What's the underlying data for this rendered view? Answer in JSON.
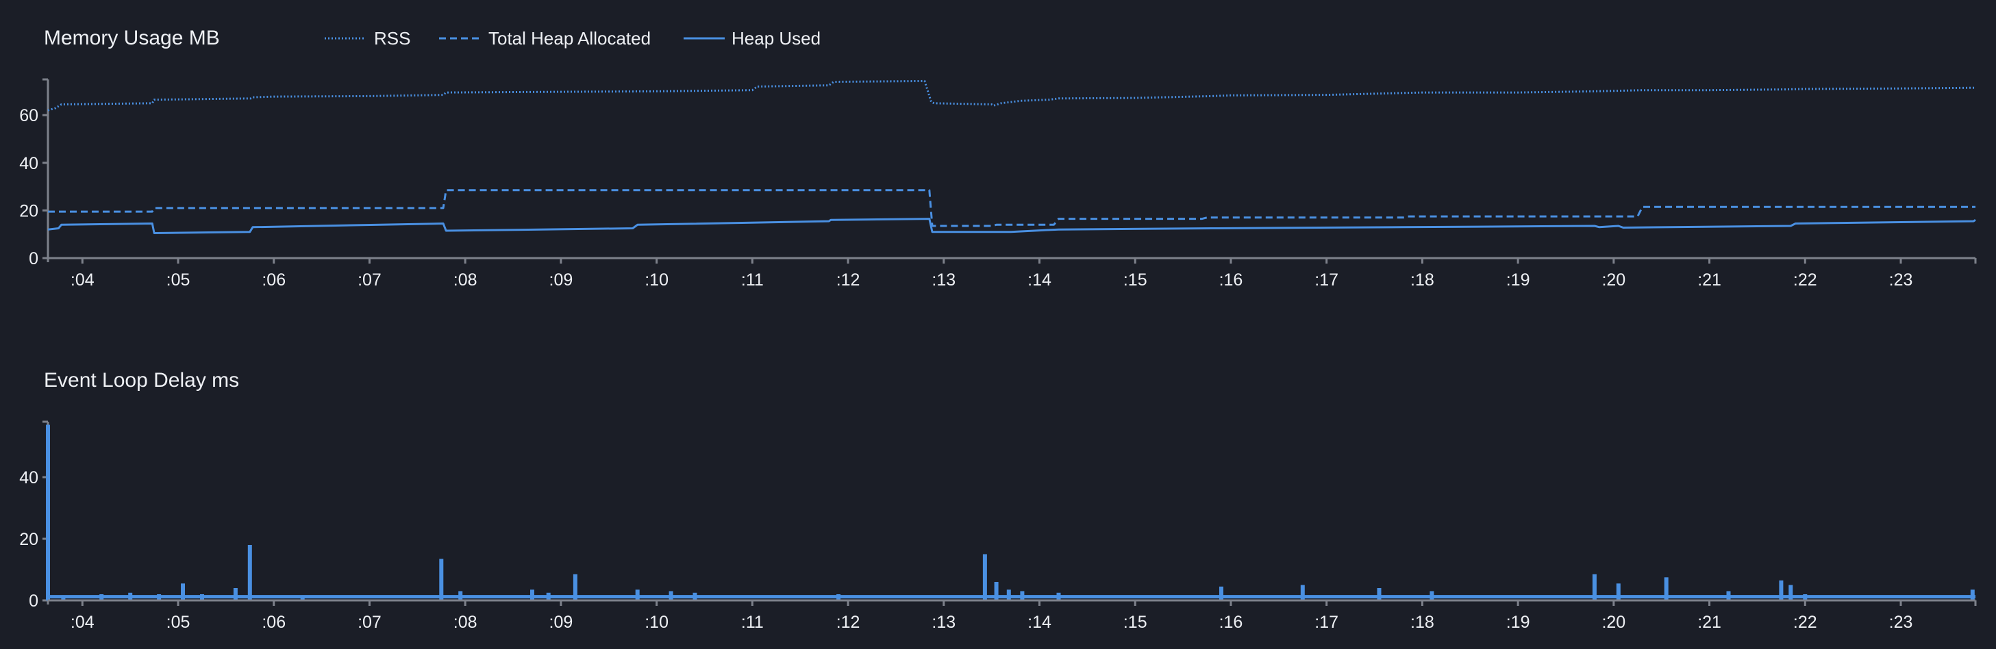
{
  "colors": {
    "background": "#1b1e27",
    "series": "#4a90e2",
    "axis": "#7d818b",
    "text": "#eef0f4"
  },
  "chart_data": [
    {
      "type": "line",
      "title": "Memory Usage MB",
      "legend_position": "top",
      "xlabel": "",
      "ylabel": "",
      "x_ticks": [
        ":04",
        ":05",
        ":06",
        ":07",
        ":08",
        ":09",
        ":10",
        ":11",
        ":12",
        ":13",
        ":14",
        ":15",
        ":16",
        ":17",
        ":18",
        ":19",
        ":20",
        ":21",
        ":22",
        ":23"
      ],
      "x_tick_minutes": [
        4,
        5,
        6,
        7,
        8,
        9,
        10,
        11,
        12,
        13,
        14,
        15,
        16,
        17,
        18,
        19,
        20,
        21,
        22,
        23
      ],
      "xlim": [
        3.64,
        23.78
      ],
      "ylim": [
        0,
        75
      ],
      "y_ticks": [
        0,
        20,
        40,
        60
      ],
      "grid": false,
      "series": [
        {
          "name": "RSS",
          "style": "dotted",
          "x": [
            3.64,
            3.72,
            3.78,
            4.73,
            4.75,
            5.76,
            5.78,
            6.0,
            7.0,
            7.77,
            7.8,
            9.0,
            10.0,
            11.0,
            11.05,
            11.8,
            11.85,
            12.8,
            12.87,
            12.9,
            13.5,
            13.52,
            13.6,
            13.8,
            14.1,
            14.2,
            15.0,
            15.8,
            16.0,
            17.0,
            17.8,
            18.0,
            19.0,
            19.8,
            20.3,
            21.0,
            21.8,
            22.0,
            23.0,
            23.78
          ],
          "y": [
            62.0,
            63.0,
            64.5,
            65.0,
            66.5,
            67.0,
            67.5,
            67.8,
            68.0,
            68.5,
            69.5,
            69.8,
            70.0,
            70.5,
            72.0,
            72.5,
            74.0,
            74.3,
            65.5,
            65.0,
            64.5,
            64.0,
            65.0,
            66.0,
            66.5,
            67.0,
            67.2,
            68.0,
            68.3,
            68.5,
            69.3,
            69.5,
            69.5,
            70.0,
            70.5,
            70.5,
            70.8,
            71.0,
            71.2,
            71.5
          ]
        },
        {
          "name": "Total Heap Allocated",
          "style": "dashed",
          "x": [
            3.64,
            4.73,
            4.75,
            7.77,
            7.8,
            12.85,
            12.88,
            13.5,
            13.55,
            14.15,
            14.2,
            15.7,
            15.75,
            17.8,
            17.85,
            20.25,
            20.3,
            23.78
          ],
          "y": [
            19.5,
            19.5,
            21.0,
            21.0,
            28.5,
            28.5,
            13.5,
            13.5,
            14.0,
            14.0,
            16.5,
            16.5,
            17.0,
            17.0,
            17.5,
            17.5,
            21.5,
            21.5
          ]
        },
        {
          "name": "Heap Used",
          "style": "solid",
          "x": [
            3.64,
            3.75,
            3.78,
            4.73,
            4.75,
            5.75,
            5.78,
            7.77,
            7.8,
            9.75,
            9.8,
            11.8,
            11.82,
            12.85,
            12.88,
            13.5,
            13.7,
            14.2,
            15.8,
            17.8,
            19.8,
            19.85,
            20.05,
            20.1,
            21.85,
            21.9,
            23.76,
            23.78
          ],
          "y": [
            12.0,
            12.5,
            14.0,
            14.5,
            10.5,
            11.0,
            13.0,
            14.5,
            11.5,
            12.5,
            14.0,
            15.5,
            16.0,
            16.5,
            11.0,
            11.0,
            11.0,
            12.0,
            12.5,
            13.0,
            13.5,
            13.0,
            13.5,
            12.8,
            13.5,
            14.5,
            15.5,
            16.0
          ]
        }
      ]
    },
    {
      "type": "bar",
      "title": "Event Loop Delay ms",
      "xlabel": "",
      "ylabel": "",
      "x_ticks": [
        ":04",
        ":05",
        ":06",
        ":07",
        ":08",
        ":09",
        ":10",
        ":11",
        ":12",
        ":13",
        ":14",
        ":15",
        ":16",
        ":17",
        ":18",
        ":19",
        ":20",
        ":21",
        ":22",
        ":23"
      ],
      "x_tick_minutes": [
        4,
        5,
        6,
        7,
        8,
        9,
        10,
        11,
        12,
        13,
        14,
        15,
        16,
        17,
        18,
        19,
        20,
        21,
        22,
        23
      ],
      "xlim": [
        3.64,
        23.78
      ],
      "ylim": [
        0,
        58
      ],
      "y_ticks": [
        0,
        20,
        40
      ],
      "grid": false,
      "baseline": 1.2,
      "x": [
        3.64,
        3.8,
        4.2,
        4.5,
        4.8,
        5.05,
        5.25,
        5.6,
        5.75,
        6.3,
        7.75,
        7.95,
        8.7,
        8.87,
        9.15,
        9.8,
        10.15,
        10.4,
        11.9,
        13.43,
        13.55,
        13.68,
        13.82,
        14.2,
        15.9,
        16.75,
        17.55,
        18.1,
        19.8,
        20.05,
        20.55,
        21.2,
        21.75,
        21.85,
        22.0,
        23.75
      ],
      "values": [
        57.0,
        1.5,
        2.0,
        2.5,
        2.0,
        5.5,
        2.0,
        4.0,
        18.0,
        1.5,
        13.5,
        3.0,
        3.5,
        2.5,
        8.5,
        3.5,
        3.0,
        2.5,
        2.0,
        15.0,
        6.0,
        3.5,
        3.0,
        2.5,
        4.5,
        5.0,
        4.0,
        3.0,
        8.5,
        5.5,
        7.5,
        3.0,
        6.5,
        5.0,
        2.0,
        3.5
      ]
    }
  ]
}
